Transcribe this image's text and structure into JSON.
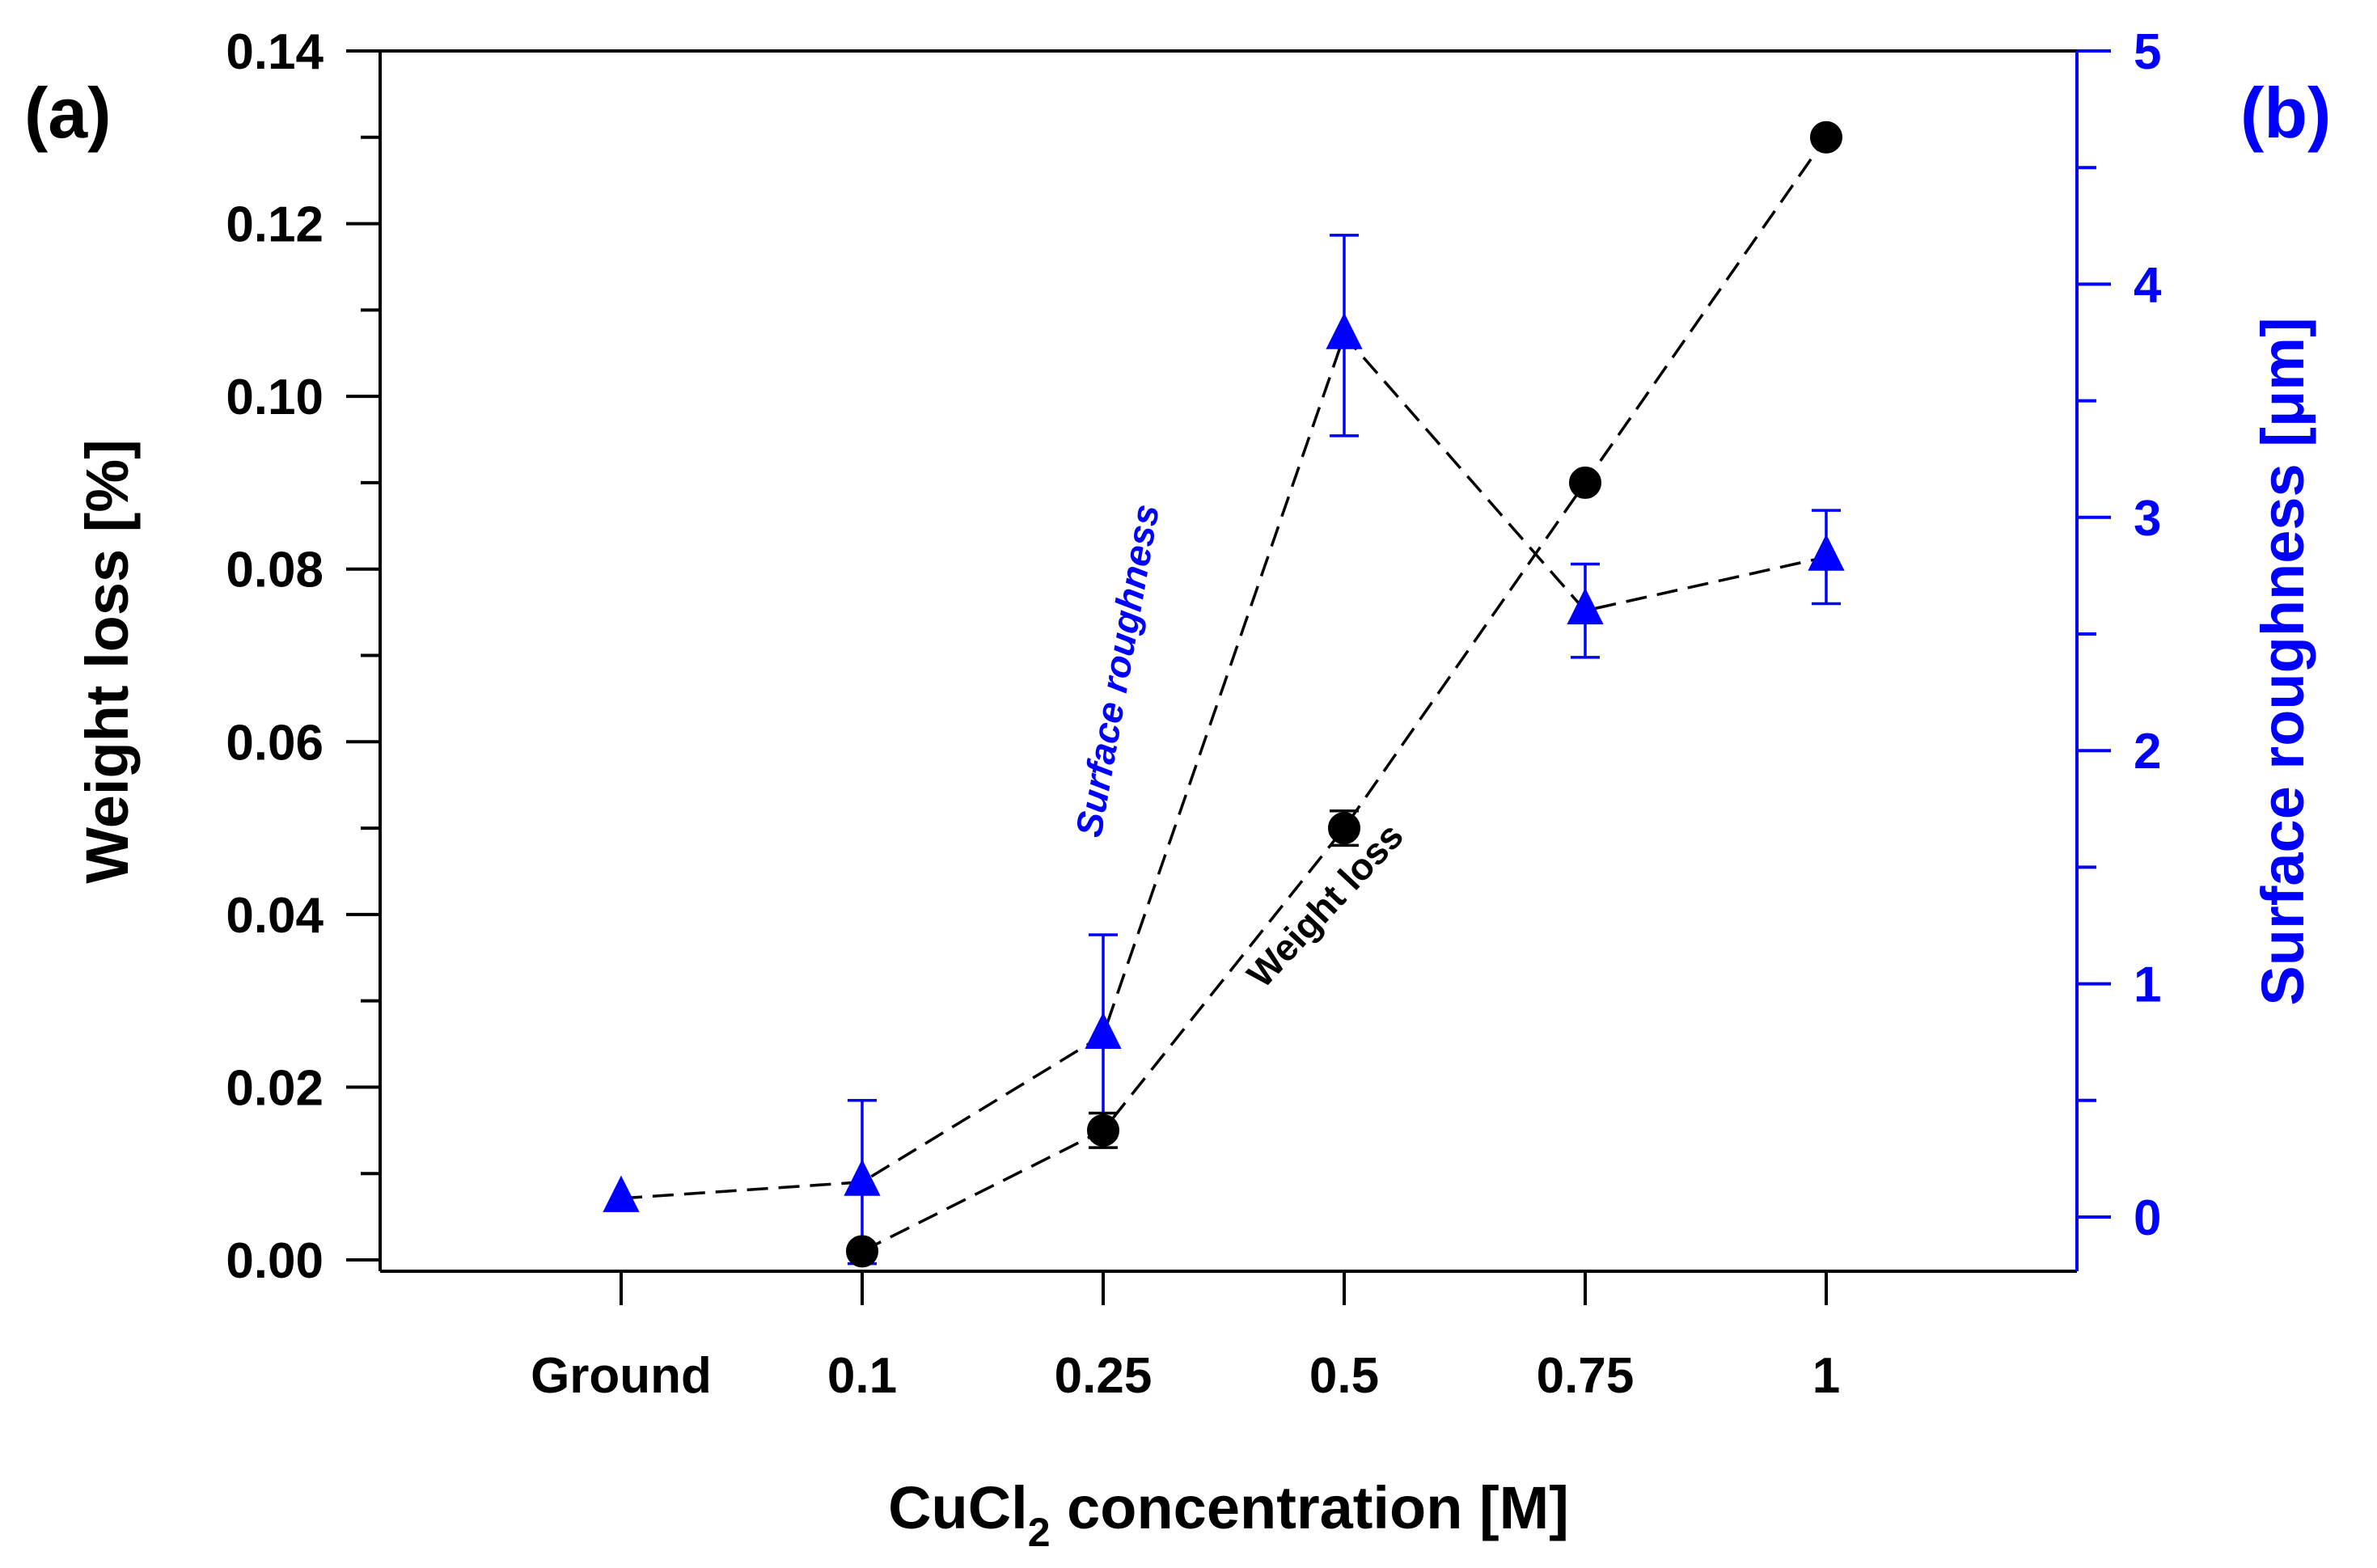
{
  "chart_data": {
    "type": "scatter",
    "categories": [
      "Ground",
      "0.1",
      "0.25",
      "0.5",
      "0.75",
      "1"
    ],
    "xlabel": {
      "prefix": "CuCl",
      "subscript": "2",
      "suffix": " concentration [M]"
    },
    "ylabel_left": "Weight loss [%]",
    "ylabel_right": "Surface roughness [μm]",
    "ylim_left": [
      0,
      0.14
    ],
    "ylim_right": [
      -0.17,
      5
    ],
    "yticks_left": [
      "0.00",
      "0.02",
      "0.04",
      "0.06",
      "0.08",
      "0.10",
      "0.12",
      "0.14"
    ],
    "yticks_right": [
      "0",
      "1",
      "2",
      "3",
      "4",
      "5"
    ],
    "panel_labels": {
      "left": "(a)",
      "right": "(b)"
    },
    "annotations": {
      "weight_loss": "Weight loss",
      "surface_roughness": "Surface roughness"
    },
    "colors": {
      "weight_loss": "#000000",
      "surface_roughness": "#0000ff",
      "axis_left": "#000000",
      "axis_right": "#0000ff"
    },
    "series": [
      {
        "name": "Weight loss",
        "axis": "left",
        "marker": "circle",
        "line": "dashed",
        "values": [
          null,
          0.001,
          0.015,
          0.05,
          0.09,
          0.13
        ],
        "errors": [
          null,
          0.0005,
          0.002,
          0.002,
          0.0005,
          0.0005
        ]
      },
      {
        "name": "Surface roughness",
        "axis": "right",
        "marker": "triangle",
        "line": "dashed",
        "values": [
          0.08,
          0.15,
          0.78,
          3.78,
          2.6,
          2.83
        ],
        "errors": [
          null,
          0.35,
          0.43,
          0.43,
          0.2,
          0.2
        ]
      }
    ]
  }
}
